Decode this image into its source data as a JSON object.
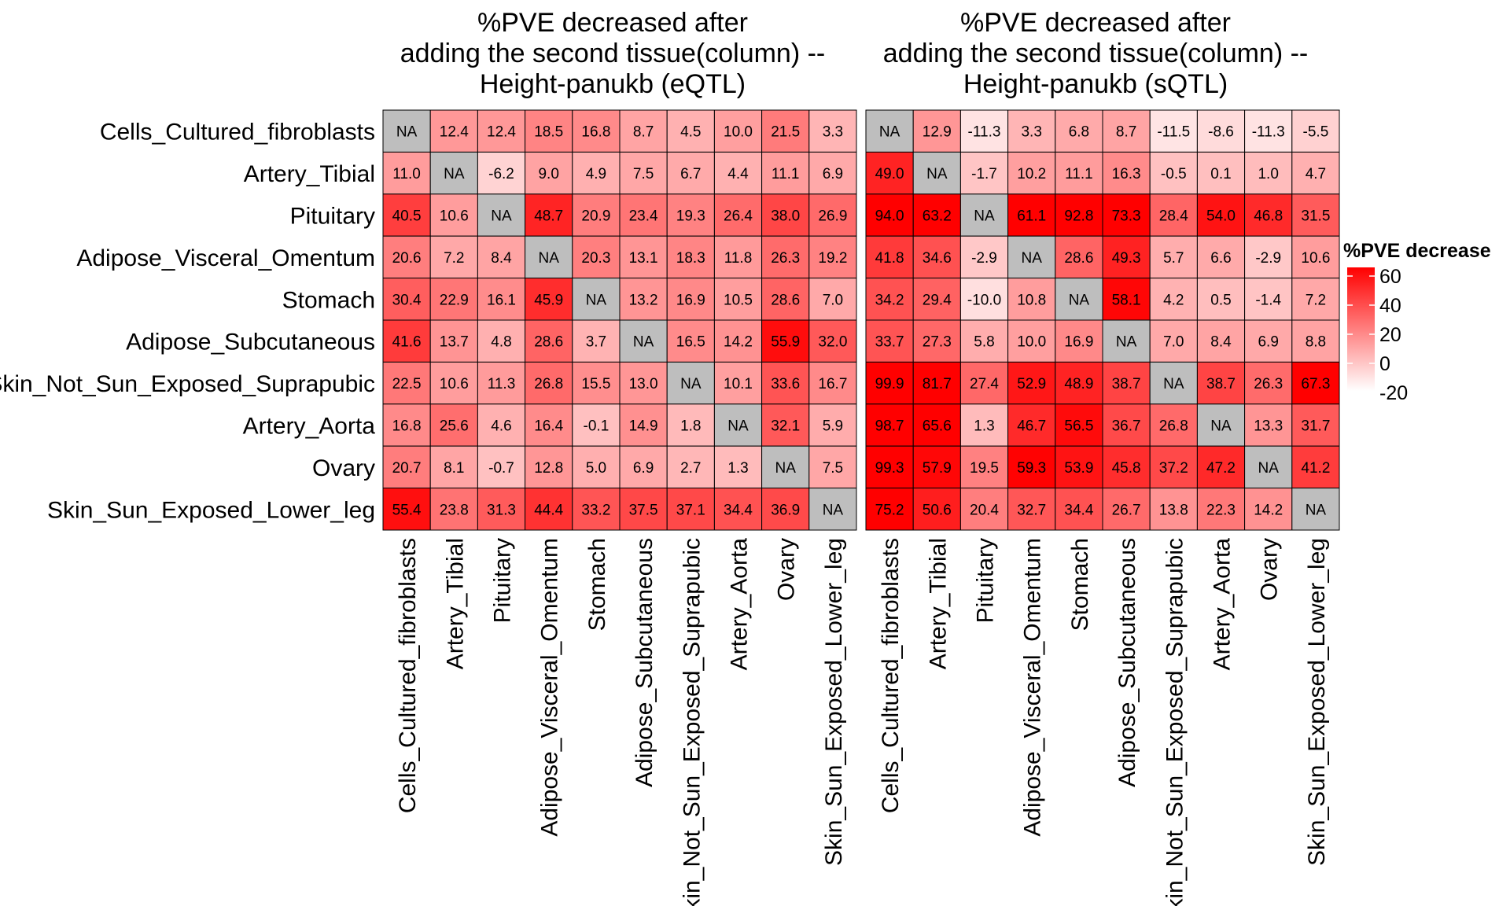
{
  "chart_data": [
    {
      "type": "heatmap",
      "title_lines": [
        "%PVE decreased after",
        "adding the second tissue(column) --",
        "Height-panukb (eQTL)"
      ],
      "rows": [
        "Cells_Cultured_fibroblasts",
        "Artery_Tibial",
        "Pituitary",
        "Adipose_Visceral_Omentum",
        "Stomach",
        "Adipose_Subcutaneous",
        "Skin_Not_Sun_Exposed_Suprapubic",
        "Artery_Aorta",
        "Ovary",
        "Skin_Sun_Exposed_Lower_leg"
      ],
      "columns": [
        "Cells_Cultured_fibroblasts",
        "Artery_Tibial",
        "Pituitary",
        "Adipose_Visceral_Omentum",
        "Stomach",
        "Adipose_Subcutaneous",
        "Skin_Not_Sun_Exposed_Suprapubic",
        "Artery_Aorta",
        "Ovary",
        "Skin_Sun_Exposed_Lower_leg"
      ],
      "values": [
        [
          "NA",
          "12.4",
          "12.4",
          "18.5",
          "16.8",
          "8.7",
          "4.5",
          "10.0",
          "21.5",
          "3.3"
        ],
        [
          "11.0",
          "NA",
          "-6.2",
          "9.0",
          "4.9",
          "7.5",
          "6.7",
          "4.4",
          "11.1",
          "6.9"
        ],
        [
          "40.5",
          "10.6",
          "NA",
          "48.7",
          "20.9",
          "23.4",
          "19.3",
          "26.4",
          "38.0",
          "26.9"
        ],
        [
          "20.6",
          "7.2",
          "8.4",
          "NA",
          "20.3",
          "13.1",
          "18.3",
          "11.8",
          "26.3",
          "19.2"
        ],
        [
          "30.4",
          "22.9",
          "16.1",
          "45.9",
          "NA",
          "13.2",
          "16.9",
          "10.5",
          "28.6",
          "7.0"
        ],
        [
          "41.6",
          "13.7",
          "4.8",
          "28.6",
          "3.7",
          "NA",
          "16.5",
          "14.2",
          "55.9",
          "32.0"
        ],
        [
          "22.5",
          "10.6",
          "11.3",
          "26.8",
          "15.5",
          "13.0",
          "NA",
          "10.1",
          "33.6",
          "16.7"
        ],
        [
          "16.8",
          "25.6",
          "4.6",
          "16.4",
          "-0.1",
          "14.9",
          "1.8",
          "NA",
          "32.1",
          "5.9"
        ],
        [
          "20.7",
          "8.1",
          "-0.7",
          "12.8",
          "5.0",
          "6.9",
          "2.7",
          "1.3",
          "NA",
          "7.5"
        ],
        [
          "55.4",
          "23.8",
          "31.3",
          "44.4",
          "33.2",
          "37.5",
          "37.1",
          "34.4",
          "36.9",
          "NA"
        ]
      ]
    },
    {
      "type": "heatmap",
      "title_lines": [
        "%PVE decreased after",
        "adding the second tissue(column) --",
        "Height-panukb (sQTL)"
      ],
      "rows": [
        "Cells_Cultured_fibroblasts",
        "Artery_Tibial",
        "Pituitary",
        "Adipose_Visceral_Omentum",
        "Stomach",
        "Adipose_Subcutaneous",
        "Skin_Not_Sun_Exposed_Suprapubic",
        "Artery_Aorta",
        "Ovary",
        "Skin_Sun_Exposed_Lower_leg"
      ],
      "columns": [
        "Cells_Cultured_fibroblasts",
        "Artery_Tibial",
        "Pituitary",
        "Adipose_Visceral_Omentum",
        "Stomach",
        "Adipose_Subcutaneous",
        "Skin_Not_Sun_Exposed_Suprapubic",
        "Artery_Aorta",
        "Ovary",
        "Skin_Sun_Exposed_Lower_leg"
      ],
      "values": [
        [
          "NA",
          "12.9",
          "-11.3",
          "3.3",
          "6.8",
          "8.7",
          "-11.5",
          "-8.6",
          "-11.3",
          "-5.5"
        ],
        [
          "49.0",
          "NA",
          "-1.7",
          "10.2",
          "11.1",
          "16.3",
          "-0.5",
          "0.1",
          "1.0",
          "4.7"
        ],
        [
          "94.0",
          "63.2",
          "NA",
          "61.1",
          "92.8",
          "73.3",
          "28.4",
          "54.0",
          "46.8",
          "31.5"
        ],
        [
          "41.8",
          "34.6",
          "-2.9",
          "NA",
          "28.6",
          "49.3",
          "5.7",
          "6.6",
          "-2.9",
          "10.6"
        ],
        [
          "34.2",
          "29.4",
          "-10.0",
          "10.8",
          "NA",
          "58.1",
          "4.2",
          "0.5",
          "-1.4",
          "7.2"
        ],
        [
          "33.7",
          "27.3",
          "5.8",
          "10.0",
          "16.9",
          "NA",
          "7.0",
          "8.4",
          "6.9",
          "8.8"
        ],
        [
          "99.9",
          "81.7",
          "27.4",
          "52.9",
          "48.9",
          "38.7",
          "NA",
          "38.7",
          "26.3",
          "67.3"
        ],
        [
          "98.7",
          "65.6",
          "1.3",
          "46.7",
          "56.5",
          "36.7",
          "26.8",
          "NA",
          "13.3",
          "31.7"
        ],
        [
          "99.3",
          "57.9",
          "19.5",
          "59.3",
          "53.9",
          "45.8",
          "37.2",
          "47.2",
          "NA",
          "41.2"
        ],
        [
          "75.2",
          "50.6",
          "20.4",
          "32.7",
          "34.4",
          "26.7",
          "13.8",
          "22.3",
          "14.2",
          "NA"
        ]
      ]
    }
  ],
  "legend": {
    "title": "%PVE decrease",
    "ticks": [
      60,
      40,
      20,
      0,
      -20
    ],
    "range": [
      -20,
      60
    ],
    "low_color": "#ffffff",
    "high_color": "#ff0000",
    "na_color": "#bebebe"
  }
}
